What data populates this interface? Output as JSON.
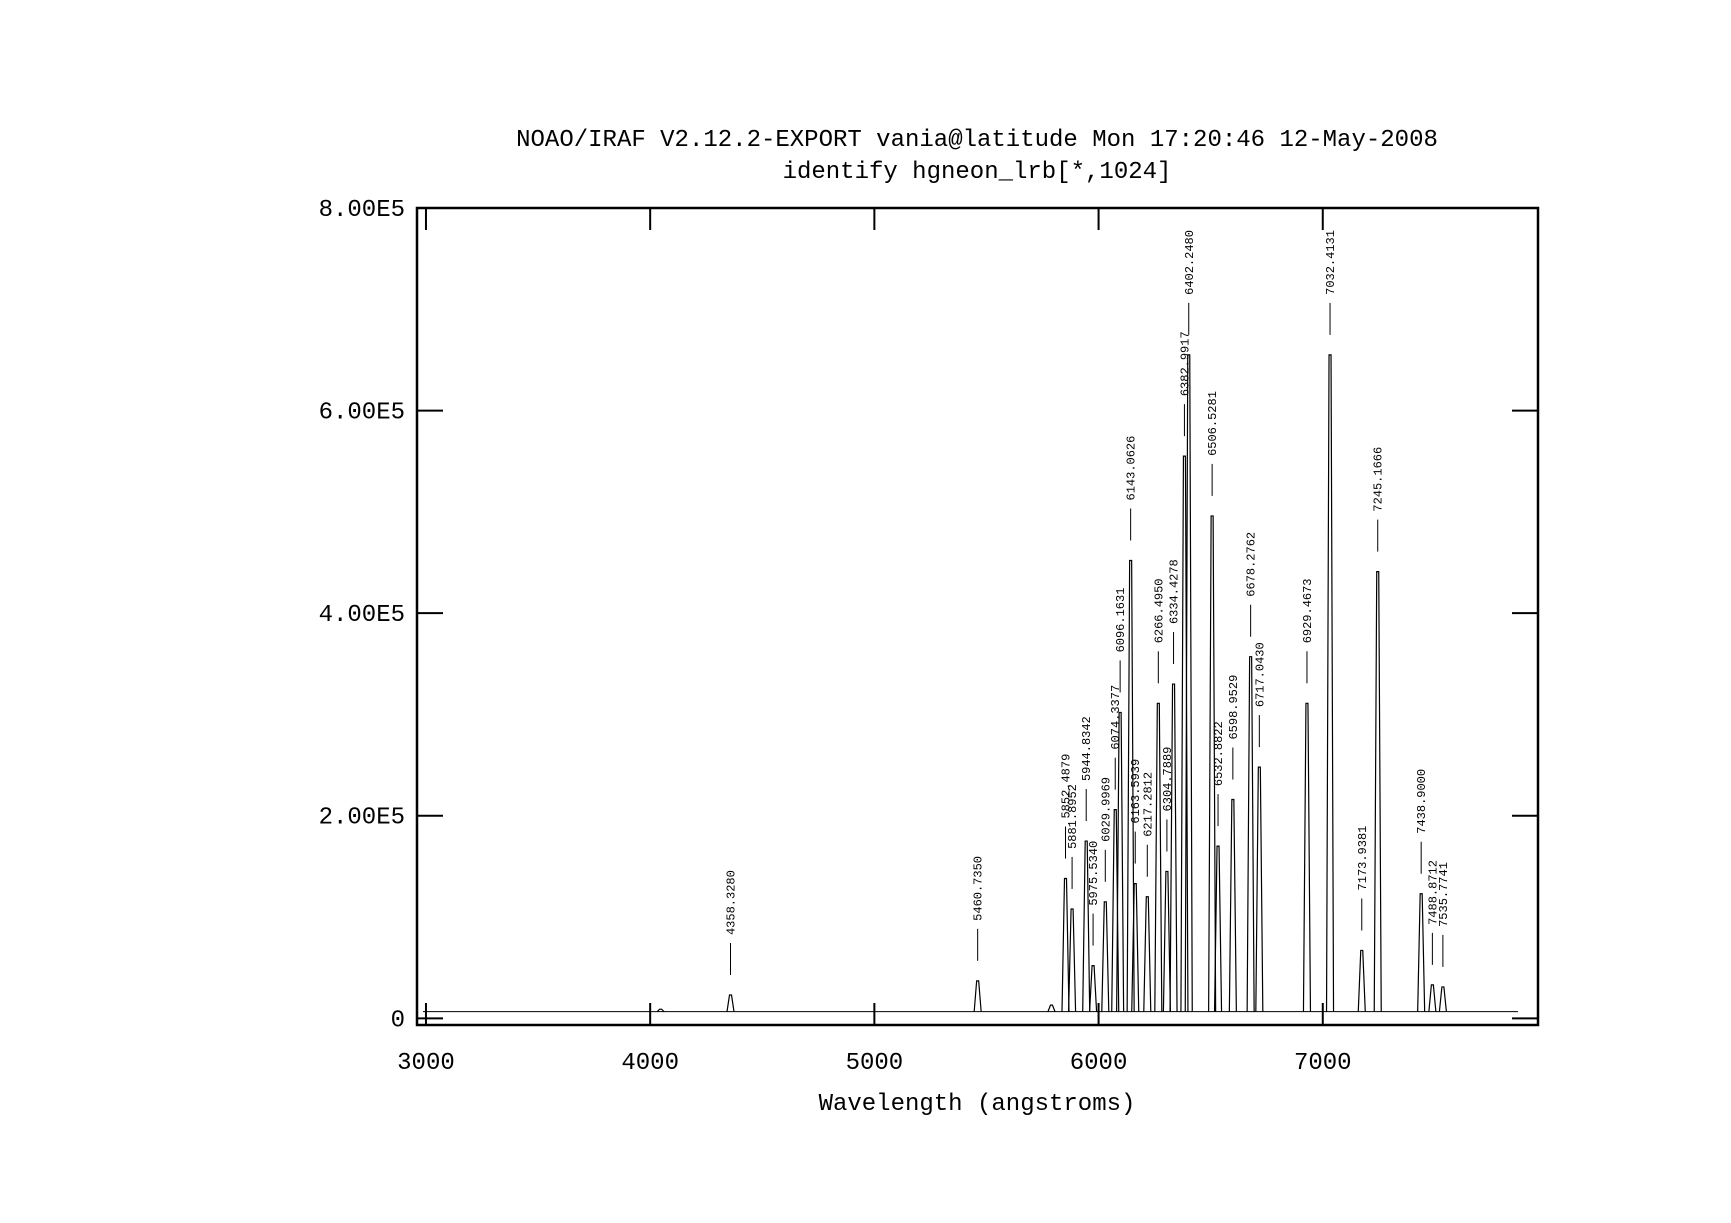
{
  "chart_data": {
    "type": "spectrum",
    "title": "NOAO/IRAF V2.12.2-EXPORT vania@latitude Mon 17:20:46 12-May-2008",
    "subtitle": "identify hgneon_lrb[*,1024]",
    "x_label": "Wavelength (angstroms)",
    "xlim": [
      2960,
      7960
    ],
    "xticks": [
      3000,
      4000,
      5000,
      6000,
      7000
    ],
    "ylim": [
      -6600,
      800000
    ],
    "yticks": [
      0,
      {
        "value": 200000,
        "label": "2.00E5"
      },
      {
        "value": 400000,
        "label": "4.00E5"
      },
      {
        "value": 600000,
        "label": "6.00E5"
      },
      {
        "value": 800000,
        "label": "8.00E5"
      }
    ],
    "color": "#000000",
    "baseline": 6600,
    "x": [
      4046.56,
      4358.328,
      5460.735,
      5790,
      5852.4879,
      5881.8952,
      5944.8342,
      5975.534,
      6029.9969,
      6074.3377,
      6096.1631,
      6143.0626,
      6163.5939,
      6217.2812,
      6266.495,
      6304.7889,
      6334.4278,
      6382.9917,
      6402.248,
      6506.5281,
      6532.8822,
      6598.9529,
      6678.2762,
      6717.043,
      6929.4673,
      7032.4131,
      7173.9381,
      7245.1666,
      7438.9,
      7488.8712,
      7535.7741
    ],
    "values": [
      9000,
      23000,
      37000,
      13000,
      138000,
      108000,
      175000,
      52000,
      115000,
      206000,
      302000,
      452000,
      133000,
      120000,
      311000,
      145000,
      330000,
      555000,
      655000,
      496000,
      170000,
      216000,
      357000,
      248000,
      311000,
      655000,
      67000,
      441000,
      123000,
      33000,
      31000
    ],
    "identified_lines": [
      {
        "value": 4358.328,
        "label": "4358.3280"
      },
      {
        "value": 5460.735,
        "label": "5460.7350"
      },
      {
        "value": 5852.4879,
        "label": "5852.4879"
      },
      {
        "value": 5881.8952,
        "label": "5881.8952"
      },
      {
        "value": 5944.8342,
        "label": "5944.8342"
      },
      {
        "value": 5975.534,
        "label": "5975.5340"
      },
      {
        "value": 6029.9969,
        "label": "6029.9969"
      },
      {
        "value": 6074.3377,
        "label": "6074.3377"
      },
      {
        "value": 6096.1631,
        "label": "6096.1631"
      },
      {
        "value": 6143.0626,
        "label": "6143.0626"
      },
      {
        "value": 6163.5939,
        "label": "6163.5939"
      },
      {
        "value": 6217.2812,
        "label": "6217.2812"
      },
      {
        "value": 6266.495,
        "label": "6266.4950"
      },
      {
        "value": 6304.7889,
        "label": "6304.7889"
      },
      {
        "value": 6334.4278,
        "label": "6334.4278"
      },
      {
        "value": 6382.9917,
        "label": "6382.9917"
      },
      {
        "value": 6402.248,
        "label": "6402.2480"
      },
      {
        "value": 6506.5281,
        "label": "6506.5281"
      },
      {
        "value": 6532.8822,
        "label": "6532.8822"
      },
      {
        "value": 6598.9529,
        "label": "6598.9529"
      },
      {
        "value": 6678.2762,
        "label": "6678.2762"
      },
      {
        "value": 6717.043,
        "label": "6717.0430"
      },
      {
        "value": 6929.4673,
        "label": "6929.4673"
      },
      {
        "value": 7032.4131,
        "label": "7032.4131"
      },
      {
        "value": 7173.9381,
        "label": "7173.9381"
      },
      {
        "value": 7245.1666,
        "label": "7245.1666"
      },
      {
        "value": 7438.9,
        "label": "7438.9000"
      },
      {
        "value": 7488.8712,
        "label": "7488.8712"
      },
      {
        "value": 7535.7741,
        "label": "7535.7741"
      }
    ]
  }
}
